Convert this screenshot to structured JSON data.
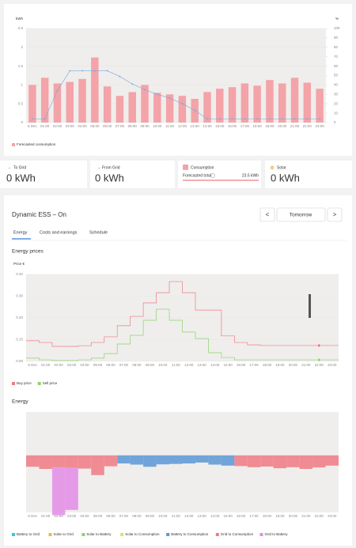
{
  "chart_data": [
    {
      "type": "bar",
      "ylabel": "kWh",
      "y2label": "%",
      "categories": [
        "6 Dec",
        "01:00",
        "02:00",
        "03:00",
        "04:00",
        "05:00",
        "06:00",
        "07:00",
        "08:00",
        "09:00",
        "10:00",
        "11:00",
        "12:00",
        "13:00",
        "14:00",
        "15:00",
        "16:00",
        "17:00",
        "18:00",
        "19:00",
        "20:00",
        "21:00",
        "22:00",
        "23:00"
      ],
      "series": [
        {
          "name": "Forecasted consumption",
          "color": "#f4a3a8",
          "values": [
            1.0,
            1.19,
            1.04,
            1.08,
            1.16,
            1.73,
            0.96,
            0.71,
            0.81,
            1.0,
            0.79,
            0.75,
            0.71,
            0.63,
            0.81,
            0.9,
            0.94,
            1.04,
            0.98,
            1.13,
            1.04,
            1.19,
            1.06,
            0.9
          ]
        },
        {
          "type": "line",
          "axis": "y2",
          "color": "#7aa7de",
          "values": [
            4,
            4,
            34,
            55,
            55,
            55,
            55,
            49,
            41,
            35,
            30,
            26,
            20,
            13,
            4,
            4,
            4,
            4,
            4,
            4,
            4,
            4,
            4,
            4
          ]
        }
      ],
      "ylim": [
        0,
        2.5
      ],
      "yticks": [
        0,
        0.5,
        1,
        1.5,
        2,
        2.5
      ],
      "y2lim": [
        0,
        100
      ],
      "y2ticks": [
        0,
        10,
        20,
        30,
        40,
        50,
        60,
        70,
        80,
        90,
        100
      ]
    },
    {
      "type": "line",
      "step": true,
      "title": "Energy prices",
      "ylabel": "Price €",
      "categories": [
        "6 Dec",
        "01:00",
        "02:00",
        "03:00",
        "04:00",
        "05:00",
        "06:00",
        "07:00",
        "08:00",
        "09:00",
        "10:00",
        "11:00",
        "12:00",
        "13:00",
        "14:00",
        "15:00",
        "16:00",
        "17:00",
        "18:00",
        "19:00",
        "20:00",
        "21:00",
        "22:00",
        "23:00"
      ],
      "series": [
        {
          "name": "Buy price",
          "color": "#f07a86",
          "values": [
            0.095,
            0.087,
            0.069,
            0.069,
            0.072,
            0.087,
            0.113,
            0.164,
            0.207,
            0.269,
            0.316,
            0.367,
            0.316,
            0.236,
            0.236,
            0.117,
            0.087,
            0.076,
            0.073,
            0.073,
            0.073,
            0.073,
            0.073,
            0.073
          ]
        },
        {
          "name": "Sell price",
          "color": "#8ed36a",
          "values": [
            0.015,
            0.007,
            0.004,
            0.004,
            0.007,
            0.015,
            0.036,
            0.08,
            0.12,
            0.189,
            0.24,
            0.189,
            0.135,
            0.105,
            0.04,
            0.018,
            0.007,
            0.007,
            0.007,
            0.007,
            0.007,
            0.007,
            0.007,
            0.007
          ]
        }
      ],
      "ylim": [
        0,
        0.4
      ],
      "yticks": [
        {
          "value": 0,
          "label": "0.00"
        },
        {
          "value": 0.1,
          "label": "0.10"
        },
        {
          "value": 0.2,
          "label": "0.20"
        },
        {
          "value": 0.3,
          "label": "0.30"
        },
        {
          "value": 0.4,
          "label": "0.40"
        }
      ]
    },
    {
      "type": "bar",
      "stacked": true,
      "title": "Energy",
      "categories": [
        "6 Dec",
        "01:00",
        "02:00",
        "03:00",
        "04:00",
        "05:00",
        "06:00",
        "07:00",
        "08:00",
        "09:00",
        "10:00",
        "11:00",
        "12:00",
        "13:00",
        "14:00",
        "15:00",
        "16:00",
        "17:00",
        "18:00",
        "19:00",
        "20:00",
        "21:00",
        "22:00",
        "23:00"
      ],
      "series": [
        {
          "name": "Battery to Grid",
          "color": "#3fc3d8",
          "values": [
            0,
            0,
            0,
            0,
            0,
            0,
            0,
            0,
            0,
            0,
            0,
            0,
            0,
            0,
            0,
            0,
            0,
            0,
            0,
            0,
            0,
            0,
            0,
            0
          ]
        },
        {
          "name": "Solar to Grid",
          "color": "#f0b73b",
          "values": [
            0,
            0,
            0,
            0,
            0,
            0,
            0,
            0,
            0,
            0,
            0,
            0,
            0,
            0,
            0,
            0,
            0,
            0,
            0,
            0,
            0,
            0,
            0,
            0
          ]
        },
        {
          "name": "Solar to Battery",
          "color": "#8ed35f",
          "values": [
            0,
            0,
            0,
            0,
            0,
            0,
            0,
            0,
            0,
            0,
            0,
            0,
            0,
            0,
            0,
            0,
            0,
            0,
            0,
            0,
            0,
            0,
            0,
            0
          ]
        },
        {
          "name": "Solar to Consumption",
          "color": "#e3e05b",
          "values": [
            0,
            0,
            0,
            0,
            0,
            0,
            0,
            0,
            0,
            0,
            0,
            0,
            0,
            0,
            0,
            0,
            0,
            0,
            0,
            0,
            0,
            0,
            0,
            0
          ]
        },
        {
          "name": "Battery to Consumption",
          "color": "#5b96d6",
          "values": [
            0,
            0,
            0,
            0,
            0,
            0,
            0,
            -0.71,
            -0.81,
            -1.0,
            -0.79,
            -0.75,
            -0.71,
            -0.63,
            -0.81,
            -0.9,
            0,
            0,
            0,
            0,
            0,
            0,
            0,
            0
          ]
        },
        {
          "name": "Grid to Consumption",
          "color": "#ef7a84",
          "values": [
            -1.0,
            -1.19,
            -1.04,
            -1.08,
            -1.16,
            -1.73,
            -0.96,
            0,
            0,
            0,
            0,
            0,
            0,
            0,
            0,
            0,
            -0.94,
            -1.04,
            -0.98,
            -1.13,
            -1.04,
            -1.19,
            -1.06,
            -0.9
          ]
        },
        {
          "name": "Grid to Battery",
          "color": "#e38be8",
          "values": [
            0,
            0,
            -4.2,
            -3.7,
            0,
            0,
            0,
            0,
            0,
            0,
            0,
            0,
            0,
            0,
            0,
            0,
            0,
            0,
            0,
            0,
            0,
            0,
            0,
            0
          ]
        }
      ],
      "ylim": [
        -5,
        3.8
      ]
    }
  ],
  "cards": [
    {
      "label": "To Grid",
      "value": "0 kWh"
    },
    {
      "label": "From Grid",
      "value": "0 kWh"
    },
    {
      "label": "Consumption",
      "sublabel": "Forecasted total",
      "value": "23.5 kWh"
    },
    {
      "label": "Solar",
      "value": "0 kWh"
    }
  ],
  "ess": {
    "title": "Dynamic ESS – On",
    "prev": "<",
    "day": "Tomorrow",
    "next": ">",
    "tabs": [
      "Energy",
      "Costs and earnings",
      "Schedule"
    ]
  }
}
